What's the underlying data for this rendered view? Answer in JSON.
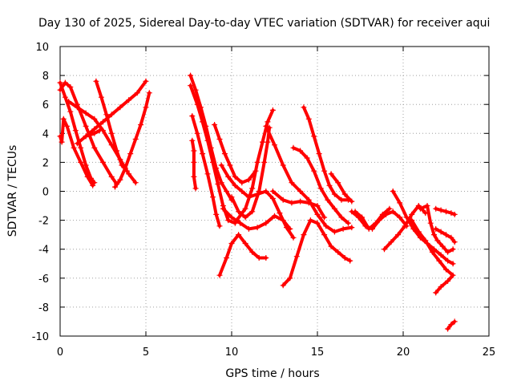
{
  "chart_data": {
    "type": "scatter",
    "title": "Day 130 of 2025, Sidereal Day-to-day VTEC variation (SDTVAR) for receiver aqui",
    "xlabel": "GPS time / hours",
    "ylabel": "SDTVAR / TECUs",
    "xlim": [
      0,
      25
    ],
    "ylim": [
      -10,
      10
    ],
    "xticks": [
      "0",
      "5",
      "10",
      "15",
      "20",
      "25"
    ],
    "yticks": [
      "10",
      "8",
      "6",
      "4",
      "2",
      "0",
      "-2",
      "-4",
      "-6",
      "-8",
      "-10"
    ],
    "grid": true,
    "marker": "plus",
    "color": "#ff0000",
    "series": [
      {
        "name": "s1",
        "points": [
          [
            0.0,
            7.5
          ],
          [
            0.3,
            6.5
          ],
          [
            0.6,
            5.5
          ],
          [
            0.9,
            4.2
          ],
          [
            1.2,
            3.0
          ],
          [
            1.5,
            1.8
          ],
          [
            1.8,
            0.9
          ],
          [
            2.0,
            0.6
          ]
        ]
      },
      {
        "name": "s2",
        "points": [
          [
            0.0,
            7.0
          ],
          [
            0.3,
            7.5
          ],
          [
            0.6,
            7.2
          ],
          [
            1.0,
            6.0
          ],
          [
            1.5,
            4.5
          ],
          [
            2.0,
            3.0
          ],
          [
            2.5,
            2.0
          ],
          [
            3.0,
            1.0
          ],
          [
            3.3,
            0.5
          ]
        ]
      },
      {
        "name": "s3",
        "points": [
          [
            0.0,
            3.8
          ],
          [
            0.1,
            3.4
          ],
          [
            0.2,
            5.0
          ],
          [
            0.4,
            4.5
          ],
          [
            0.8,
            3.0
          ],
          [
            1.2,
            2.0
          ],
          [
            1.6,
            1.0
          ],
          [
            1.9,
            0.4
          ]
        ]
      },
      {
        "name": "s4",
        "points": [
          [
            0.5,
            6.2
          ],
          [
            1.0,
            5.8
          ],
          [
            1.5,
            5.4
          ],
          [
            2.0,
            5.0
          ],
          [
            2.5,
            4.2
          ],
          [
            3.0,
            3.2
          ],
          [
            3.5,
            2.2
          ],
          [
            4.0,
            1.2
          ],
          [
            4.4,
            0.6
          ]
        ]
      },
      {
        "name": "s5",
        "points": [
          [
            2.1,
            7.6
          ],
          [
            2.4,
            6.5
          ],
          [
            2.7,
            5.3
          ],
          [
            3.0,
            4.0
          ],
          [
            3.3,
            2.8
          ],
          [
            3.6,
            1.8
          ],
          [
            3.9,
            1.4
          ]
        ]
      },
      {
        "name": "s6",
        "points": [
          [
            3.2,
            0.3
          ],
          [
            3.5,
            0.8
          ],
          [
            3.8,
            1.6
          ],
          [
            4.1,
            2.6
          ],
          [
            4.4,
            3.6
          ],
          [
            4.7,
            4.6
          ],
          [
            5.0,
            5.8
          ],
          [
            5.2,
            6.8
          ]
        ]
      },
      {
        "name": "s7",
        "points": [
          [
            1.5,
            3.8
          ],
          [
            2.0,
            4.3
          ],
          [
            2.5,
            4.8
          ],
          [
            3.0,
            5.3
          ],
          [
            3.5,
            5.8
          ],
          [
            4.0,
            6.3
          ],
          [
            4.5,
            6.8
          ],
          [
            5.0,
            7.6
          ]
        ]
      },
      {
        "name": "s8",
        "points": [
          [
            1.0,
            3.3
          ],
          [
            1.5,
            3.8
          ],
          [
            2.0,
            4.0
          ],
          [
            2.3,
            4.2
          ]
        ]
      },
      {
        "name": "s9",
        "points": [
          [
            7.6,
            8.0
          ],
          [
            7.9,
            7.0
          ],
          [
            8.2,
            5.8
          ],
          [
            8.5,
            4.5
          ],
          [
            8.8,
            3.0
          ],
          [
            9.1,
            1.6
          ],
          [
            9.4,
            0.6
          ],
          [
            9.7,
            0.0
          ],
          [
            10.0,
            -0.6
          ]
        ]
      },
      {
        "name": "s10",
        "points": [
          [
            7.6,
            7.3
          ],
          [
            8.0,
            6.0
          ],
          [
            8.3,
            4.8
          ],
          [
            8.6,
            3.5
          ],
          [
            8.9,
            2.0
          ],
          [
            9.2,
            0.5
          ],
          [
            9.5,
            -1.0
          ],
          [
            9.8,
            -2.0
          ],
          [
            10.2,
            -2.2
          ]
        ]
      },
      {
        "name": "s11",
        "points": [
          [
            7.7,
            3.5
          ],
          [
            7.8,
            2.8
          ],
          [
            7.8,
            2.0
          ],
          [
            7.8,
            1.0
          ],
          [
            7.9,
            0.2
          ]
        ]
      },
      {
        "name": "s12",
        "points": [
          [
            7.7,
            5.2
          ],
          [
            8.0,
            4.0
          ],
          [
            8.3,
            2.6
          ],
          [
            8.6,
            1.2
          ],
          [
            8.9,
            -0.4
          ],
          [
            9.1,
            -1.6
          ],
          [
            9.3,
            -2.4
          ]
        ]
      },
      {
        "name": "s13",
        "points": [
          [
            9.0,
            4.6
          ],
          [
            9.3,
            3.6
          ],
          [
            9.6,
            2.6
          ],
          [
            9.9,
            1.8
          ],
          [
            10.2,
            1.0
          ],
          [
            10.6,
            0.6
          ],
          [
            11.0,
            0.8
          ],
          [
            11.4,
            1.4
          ]
        ]
      },
      {
        "name": "s14",
        "points": [
          [
            9.4,
            1.8
          ],
          [
            9.8,
            1.0
          ],
          [
            10.2,
            0.4
          ],
          [
            10.6,
            0.0
          ],
          [
            11.0,
            -0.4
          ],
          [
            11.5,
            -0.2
          ],
          [
            12.0,
            0.0
          ],
          [
            12.4,
            -0.5
          ],
          [
            12.8,
            -1.5
          ],
          [
            13.2,
            -2.5
          ],
          [
            13.6,
            -3.2
          ]
        ]
      },
      {
        "name": "s15",
        "points": [
          [
            9.5,
            -1.2
          ],
          [
            10.0,
            -1.8
          ],
          [
            10.5,
            -2.2
          ],
          [
            11.0,
            -2.6
          ],
          [
            11.5,
            -2.5
          ],
          [
            12.0,
            -2.2
          ],
          [
            12.5,
            -1.7
          ],
          [
            13.0,
            -2.0
          ],
          [
            13.4,
            -2.6
          ]
        ]
      },
      {
        "name": "s16",
        "points": [
          [
            9.3,
            -5.8
          ],
          [
            9.7,
            -4.6
          ],
          [
            10.0,
            -3.6
          ],
          [
            10.4,
            -3.0
          ],
          [
            10.8,
            -3.6
          ],
          [
            11.2,
            -4.2
          ],
          [
            11.6,
            -4.6
          ],
          [
            12.0,
            -4.6
          ]
        ]
      },
      {
        "name": "s17",
        "points": [
          [
            10.0,
            -0.4
          ],
          [
            10.4,
            -1.4
          ],
          [
            10.8,
            -1.8
          ],
          [
            11.2,
            -1.4
          ],
          [
            11.6,
            0.0
          ],
          [
            11.9,
            2.0
          ],
          [
            12.1,
            3.4
          ],
          [
            12.2,
            4.4
          ]
        ]
      },
      {
        "name": "s18",
        "points": [
          [
            10.3,
            -2.0
          ],
          [
            10.8,
            -1.2
          ],
          [
            11.2,
            0.2
          ],
          [
            11.5,
            2.0
          ],
          [
            11.8,
            3.4
          ],
          [
            12.1,
            4.8
          ],
          [
            12.4,
            5.6
          ]
        ]
      },
      {
        "name": "s19",
        "points": [
          [
            12.0,
            4.5
          ],
          [
            12.5,
            3.2
          ],
          [
            13.0,
            1.8
          ],
          [
            13.5,
            0.6
          ],
          [
            14.0,
            0.0
          ],
          [
            14.5,
            -0.6
          ],
          [
            15.0,
            -1.6
          ],
          [
            15.5,
            -2.4
          ],
          [
            16.0,
            -2.8
          ],
          [
            16.5,
            -2.6
          ],
          [
            17.0,
            -2.5
          ]
        ]
      },
      {
        "name": "s20",
        "points": [
          [
            13.0,
            -6.5
          ],
          [
            13.4,
            -6.0
          ],
          [
            13.8,
            -4.5
          ],
          [
            14.2,
            -3.0
          ],
          [
            14.6,
            -2.0
          ],
          [
            15.0,
            -2.2
          ],
          [
            15.4,
            -3.0
          ],
          [
            15.8,
            -3.8
          ],
          [
            16.2,
            -4.2
          ],
          [
            16.6,
            -4.6
          ],
          [
            16.9,
            -4.8
          ]
        ]
      },
      {
        "name": "s21",
        "points": [
          [
            12.4,
            0.0
          ],
          [
            13.0,
            -0.6
          ],
          [
            13.5,
            -0.8
          ],
          [
            14.0,
            -0.7
          ],
          [
            14.5,
            -0.8
          ],
          [
            15.0,
            -1.0
          ],
          [
            15.4,
            -1.8
          ]
        ]
      },
      {
        "name": "s22",
        "points": [
          [
            14.2,
            5.8
          ],
          [
            14.5,
            5.0
          ],
          [
            14.8,
            3.8
          ],
          [
            15.1,
            2.6
          ],
          [
            15.4,
            1.4
          ],
          [
            15.7,
            0.4
          ],
          [
            16.0,
            -0.2
          ],
          [
            16.4,
            -0.6
          ],
          [
            16.8,
            -0.6
          ]
        ]
      },
      {
        "name": "s23",
        "points": [
          [
            13.6,
            3.0
          ],
          [
            14.0,
            2.8
          ],
          [
            14.4,
            2.3
          ],
          [
            14.8,
            1.4
          ],
          [
            15.2,
            0.2
          ],
          [
            15.6,
            -0.6
          ],
          [
            16.0,
            -1.2
          ],
          [
            16.4,
            -1.8
          ],
          [
            16.8,
            -2.2
          ]
        ]
      },
      {
        "name": "s24",
        "points": [
          [
            15.8,
            1.2
          ],
          [
            16.2,
            0.6
          ],
          [
            16.6,
            -0.2
          ],
          [
            17.0,
            -0.7
          ]
        ]
      },
      {
        "name": "s25",
        "points": [
          [
            17.0,
            -1.4
          ],
          [
            17.4,
            -1.8
          ],
          [
            17.8,
            -2.4
          ],
          [
            18.2,
            -2.6
          ],
          [
            18.6,
            -2.0
          ],
          [
            19.0,
            -1.6
          ],
          [
            19.4,
            -1.4
          ],
          [
            19.8,
            -1.8
          ],
          [
            20.2,
            -2.4
          ]
        ]
      },
      {
        "name": "s26",
        "points": [
          [
            18.9,
            -4.0
          ],
          [
            19.3,
            -3.5
          ],
          [
            19.7,
            -3.0
          ],
          [
            20.1,
            -2.4
          ],
          [
            20.5,
            -1.6
          ],
          [
            20.9,
            -1.0
          ],
          [
            21.3,
            -1.5
          ]
        ]
      },
      {
        "name": "s27",
        "points": [
          [
            19.4,
            0.0
          ],
          [
            19.8,
            -0.8
          ],
          [
            20.2,
            -1.8
          ],
          [
            20.6,
            -2.6
          ],
          [
            21.0,
            -3.2
          ],
          [
            21.4,
            -3.6
          ],
          [
            21.8,
            -4.0
          ],
          [
            22.2,
            -4.4
          ],
          [
            22.6,
            -4.8
          ],
          [
            22.9,
            -5.0
          ]
        ]
      },
      {
        "name": "s28",
        "points": [
          [
            20.5,
            -2.0
          ],
          [
            20.9,
            -2.8
          ],
          [
            21.3,
            -3.4
          ],
          [
            21.7,
            -4.2
          ],
          [
            22.1,
            -4.8
          ],
          [
            22.5,
            -5.4
          ],
          [
            22.9,
            -5.8
          ],
          [
            22.6,
            -6.2
          ],
          [
            22.2,
            -6.6
          ],
          [
            21.9,
            -7.0
          ]
        ]
      },
      {
        "name": "s29",
        "points": [
          [
            21.0,
            -1.2
          ],
          [
            21.4,
            -1.0
          ],
          [
            21.6,
            -2.2
          ],
          [
            21.8,
            -3.0
          ],
          [
            22.0,
            -3.4
          ],
          [
            22.3,
            -3.8
          ],
          [
            22.6,
            -4.2
          ],
          [
            22.9,
            -4.0
          ]
        ]
      },
      {
        "name": "s30",
        "points": [
          [
            21.9,
            -2.6
          ],
          [
            22.2,
            -2.8
          ],
          [
            22.5,
            -3.0
          ],
          [
            22.8,
            -3.2
          ],
          [
            23.0,
            -3.5
          ]
        ]
      },
      {
        "name": "s31",
        "points": [
          [
            21.9,
            -1.2
          ],
          [
            22.2,
            -1.3
          ],
          [
            22.5,
            -1.4
          ],
          [
            22.8,
            -1.5
          ],
          [
            23.0,
            -1.6
          ]
        ]
      },
      {
        "name": "s32",
        "points": [
          [
            22.6,
            -9.5
          ],
          [
            22.8,
            -9.2
          ],
          [
            23.0,
            -9.0
          ]
        ]
      },
      {
        "name": "s33",
        "points": [
          [
            17.2,
            -1.4
          ],
          [
            17.6,
            -1.8
          ],
          [
            18.0,
            -2.6
          ],
          [
            18.4,
            -2.2
          ],
          [
            18.8,
            -1.6
          ],
          [
            19.2,
            -1.2
          ]
        ]
      }
    ]
  }
}
